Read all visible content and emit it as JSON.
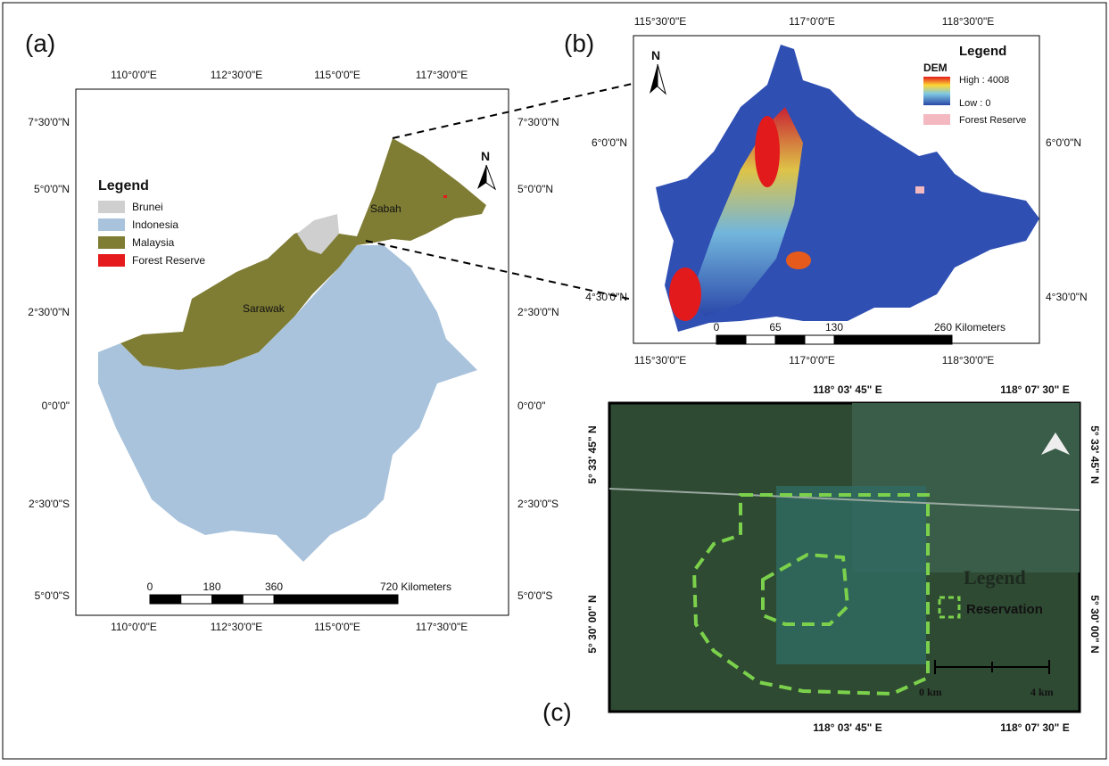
{
  "panels": [
    {
      "label": "(a)",
      "lon_ticks": [
        "110°0'0\"E",
        "112°30'0\"E",
        "115°0'0\"E",
        "117°30'0\"E"
      ],
      "lat_ticks": [
        "7°30'0\"N",
        "5°0'0\"N",
        "2°30'0\"N",
        "0°0'0\"",
        "2°30'0\"S",
        "5°0'0\"S"
      ],
      "legend": {
        "title": "Legend",
        "items": [
          "Brunei",
          "Indonesia",
          "Malaysia",
          "Forest Reserve"
        ]
      },
      "places": [
        "Sabah",
        "Sarawak"
      ],
      "scale": [
        "0",
        "180",
        "360",
        "720 Kilometers"
      ],
      "north": "N"
    },
    {
      "label": "(b)",
      "lon_ticks": [
        "115°30'0\"E",
        "117°0'0\"E",
        "118°30'0\"E"
      ],
      "lat_ticks": [
        "6°0'0\"N",
        "4°30'0\"N"
      ],
      "legend": {
        "title": "Legend",
        "subtitle": "DEM",
        "items": [
          "High : 4008",
          "Low : 0",
          "Forest Reserve"
        ]
      },
      "scale": [
        "0",
        "65",
        "130",
        "260 Kilometers"
      ],
      "north": "N"
    },
    {
      "label": "(c)",
      "lon_ticks": [
        "118° 03' 45\" E",
        "118° 07' 30\" E"
      ],
      "lat_ticks": [
        "5° 33' 45\" N",
        "5° 30' 00\" N"
      ],
      "legend": {
        "title": "Legend",
        "items": [
          "Reservation"
        ]
      },
      "scale": [
        "0 km",
        "4 km"
      ]
    }
  ]
}
